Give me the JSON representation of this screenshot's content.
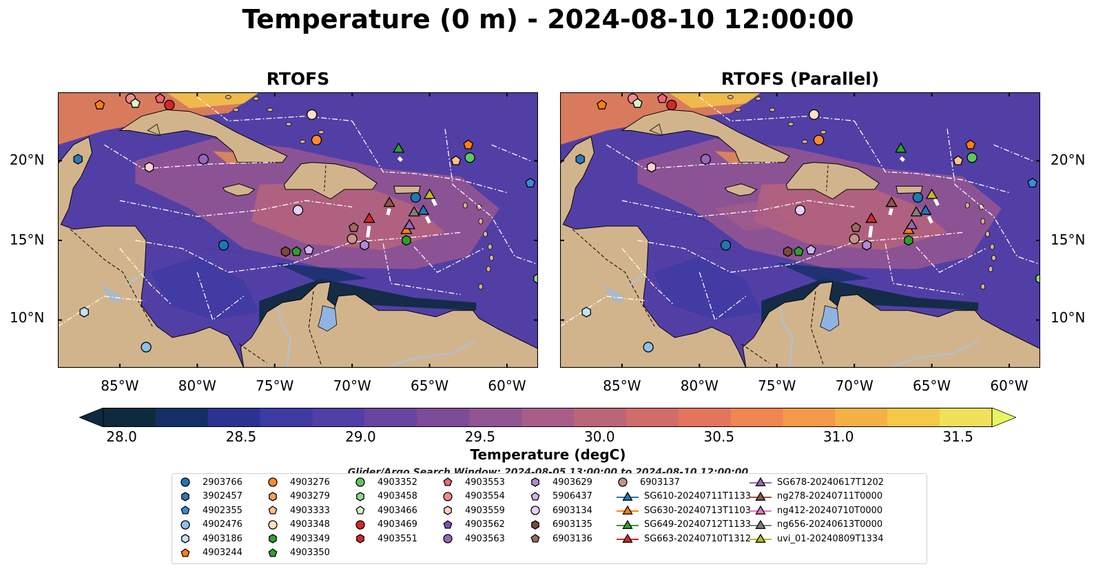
{
  "title": "Temperature (0 m) - 2024-08-10 12:00:00",
  "panels": [
    {
      "title": "RTOFS"
    },
    {
      "title": "RTOFS (Parallel)"
    }
  ],
  "map": {
    "lon_range": [
      -89,
      -58
    ],
    "lat_range": [
      7,
      24.3
    ],
    "lat_ticks": [
      {
        "value": 20,
        "label": "20°N"
      },
      {
        "value": 15,
        "label": "15°N"
      },
      {
        "value": 10,
        "label": "10°N"
      }
    ],
    "lon_ticks": [
      {
        "value": -85,
        "label": "85°W"
      },
      {
        "value": -80,
        "label": "80°W"
      },
      {
        "value": -75,
        "label": "75°W"
      },
      {
        "value": -70,
        "label": "70°W"
      },
      {
        "value": -65,
        "label": "65°W"
      },
      {
        "value": -60,
        "label": "60°W"
      }
    ],
    "land_color": "#d2b48c",
    "lake_color": "#8fb4e3"
  },
  "colorbar": {
    "label": "Temperature (degC)",
    "min": 28.0,
    "max": 31.5,
    "ticks": [
      "28.0",
      "28.5",
      "29.0",
      "29.5",
      "30.0",
      "30.5",
      "31.0",
      "31.5"
    ],
    "colors": [
      "#0d2a3e",
      "#142f66",
      "#2b3391",
      "#3d3ba2",
      "#523fa6",
      "#6845a0",
      "#7e4b98",
      "#925592",
      "#a85e88",
      "#bc6578",
      "#d06c6a",
      "#e3755c",
      "#f08650",
      "#f49a48",
      "#f6b145",
      "#f5c948",
      "#f1e05a"
    ],
    "under_color": "#0d2a3e",
    "over_color": "#e8f562"
  },
  "search_window": "Glider/Argo Search Window: 2024-08-05 13:00:00 to 2024-08-10 12:00:00",
  "legend": {
    "columns": [
      [
        {
          "label": "2903766",
          "marker": "circle",
          "color": "#1f77b4"
        },
        {
          "label": "3902457",
          "marker": "hexagon",
          "color": "#2f78b8"
        },
        {
          "label": "4902355",
          "marker": "pentagon",
          "color": "#3b8bd4"
        },
        {
          "label": "4902476",
          "marker": "circle",
          "color": "#8ec0e8"
        },
        {
          "label": "4903186",
          "marker": "hexagon",
          "color": "#c6e2f6"
        },
        {
          "label": "4903244",
          "marker": "pentagon",
          "color": "#ff7f0e"
        }
      ],
      [
        {
          "label": "4903276",
          "marker": "circle",
          "color": "#ff8c2a"
        },
        {
          "label": "4903279",
          "marker": "hexagon",
          "color": "#ffa04a"
        },
        {
          "label": "4903333",
          "marker": "pentagon",
          "color": "#ffc08a"
        },
        {
          "label": "4903348",
          "marker": "circle",
          "color": "#ffe0c2"
        },
        {
          "label": "4903349",
          "marker": "hexagon",
          "color": "#2ca02c"
        },
        {
          "label": "4903350",
          "marker": "pentagon",
          "color": "#2ca02c"
        }
      ],
      [
        {
          "label": "4903352",
          "marker": "circle",
          "color": "#5fc65f"
        },
        {
          "label": "4903458",
          "marker": "hexagon",
          "color": "#8ed88e"
        },
        {
          "label": "4903466",
          "marker": "pentagon",
          "color": "#d4f5c8"
        },
        {
          "label": "4903469",
          "marker": "circle",
          "color": "#d62728"
        },
        {
          "label": "4903551",
          "marker": "hexagon",
          "color": "#d62728"
        }
      ],
      [
        {
          "label": "4903553",
          "marker": "pentagon",
          "color": "#f06478"
        },
        {
          "label": "4903554",
          "marker": "circle",
          "color": "#f28a8a"
        },
        {
          "label": "4903559",
          "marker": "hexagon",
          "color": "#fbd0d0"
        },
        {
          "label": "4903562",
          "marker": "pentagon",
          "color": "#7b4fb8"
        },
        {
          "label": "4903563",
          "marker": "circle",
          "color": "#9467bd"
        }
      ],
      [
        {
          "label": "4903629",
          "marker": "hexagon",
          "color": "#b08ad6"
        },
        {
          "label": "5906437",
          "marker": "pentagon",
          "color": "#cdb4ec"
        },
        {
          "label": "6903134",
          "marker": "circle",
          "color": "#e6d2f8"
        },
        {
          "label": "6903135",
          "marker": "hexagon",
          "color": "#7a4a3a"
        },
        {
          "label": "6903136",
          "marker": "pentagon",
          "color": "#a0675a"
        }
      ],
      [
        {
          "label": "6903137",
          "marker": "circle",
          "color": "#c49484"
        },
        {
          "label": "SG610-20240711T1133",
          "marker": "triangle",
          "color": "#1f77b4"
        },
        {
          "label": "SG630-20240713T1103",
          "marker": "triangle",
          "color": "#ff7f0e"
        },
        {
          "label": "SG649-20240712T1133",
          "marker": "triangle",
          "color": "#2ca02c"
        },
        {
          "label": "SG663-20240710T1312",
          "marker": "triangle",
          "color": "#d62728"
        }
      ],
      [
        {
          "label": "SG678-20240617T1202",
          "marker": "triangle",
          "color": "#9467bd"
        },
        {
          "label": "ng278-20240711T0000",
          "marker": "triangle",
          "color": "#8c564b"
        },
        {
          "label": "ng412-20240710T0000",
          "marker": "triangle",
          "color": "#e377c2"
        },
        {
          "label": "ng656-20240613T0000",
          "marker": "triangle",
          "color": "#7f7f7f"
        },
        {
          "label": "uvi_01-20240809T1334",
          "marker": "triangle",
          "color": "#bcbd22"
        }
      ]
    ]
  },
  "markers": [
    {
      "lon": -86.3,
      "lat": 23.5,
      "marker": "pentagon",
      "color": "#ff7f0e"
    },
    {
      "lon": -84.3,
      "lat": 23.9,
      "marker": "circle",
      "color": "#f28a8a"
    },
    {
      "lon": -84.0,
      "lat": 23.6,
      "marker": "pentagon",
      "color": "#d4f5c8"
    },
    {
      "lon": -82.4,
      "lat": 23.9,
      "marker": "pentagon",
      "color": "#f06478"
    },
    {
      "lon": -81.8,
      "lat": 23.5,
      "marker": "circle",
      "color": "#d62728"
    },
    {
      "lon": -72.6,
      "lat": 22.9,
      "marker": "circle",
      "color": "#ffe0c2"
    },
    {
      "lon": -72.3,
      "lat": 21.3,
      "marker": "circle",
      "color": "#ff8c2a"
    },
    {
      "lon": -87.7,
      "lat": 20.1,
      "marker": "hexagon",
      "color": "#2f78b8"
    },
    {
      "lon": -83.1,
      "lat": 19.6,
      "marker": "hexagon",
      "color": "#fbd0d0"
    },
    {
      "lon": -79.6,
      "lat": 20.1,
      "marker": "circle",
      "color": "#9467bd"
    },
    {
      "lon": -62.5,
      "lat": 21.0,
      "marker": "pentagon",
      "color": "#ff7f0e"
    },
    {
      "lon": -63.3,
      "lat": 20.0,
      "marker": "pentagon",
      "color": "#ffc08a"
    },
    {
      "lon": -62.4,
      "lat": 20.2,
      "marker": "circle",
      "color": "#5fc65f"
    },
    {
      "lon": -58.5,
      "lat": 18.6,
      "marker": "pentagon",
      "color": "#3b8bd4"
    },
    {
      "lon": -73.5,
      "lat": 16.9,
      "marker": "circle",
      "color": "#e6d2f8"
    },
    {
      "lon": -65.9,
      "lat": 17.7,
      "marker": "circle",
      "color": "#1f77b4"
    },
    {
      "lon": -69.9,
      "lat": 15.8,
      "marker": "pentagon",
      "color": "#a0675a"
    },
    {
      "lon": -70.0,
      "lat": 15.1,
      "marker": "circle",
      "color": "#c49484"
    },
    {
      "lon": -69.2,
      "lat": 14.7,
      "marker": "hexagon",
      "color": "#b08ad6"
    },
    {
      "lon": -66.5,
      "lat": 15.0,
      "marker": "hexagon",
      "color": "#2ca02c"
    },
    {
      "lon": -78.3,
      "lat": 14.7,
      "marker": "circle",
      "color": "#1f77b4"
    },
    {
      "lon": -74.3,
      "lat": 14.3,
      "marker": "hexagon",
      "color": "#7a4a3a"
    },
    {
      "lon": -73.6,
      "lat": 14.3,
      "marker": "pentagon",
      "color": "#2ca02c"
    },
    {
      "lon": -72.8,
      "lat": 14.4,
      "marker": "pentagon",
      "color": "#cdb4ec"
    },
    {
      "lon": -58.0,
      "lat": 12.6,
      "marker": "hexagon",
      "color": "#8ed88e"
    },
    {
      "lon": -87.3,
      "lat": 10.5,
      "marker": "hexagon",
      "color": "#c6e2f6"
    },
    {
      "lon": -83.3,
      "lat": 8.3,
      "marker": "circle",
      "color": "#8ec0e8"
    },
    {
      "lon": -67.0,
      "lat": 20.8,
      "marker": "triangle",
      "color": "#2ca02c"
    },
    {
      "lon": -68.9,
      "lat": 16.4,
      "marker": "triangle",
      "color": "#d62728"
    },
    {
      "lon": -67.6,
      "lat": 17.4,
      "marker": "triangle",
      "color": "#8c564b"
    },
    {
      "lon": -65.0,
      "lat": 17.9,
      "marker": "triangle",
      "color": "#bcbd22"
    },
    {
      "lon": -65.4,
      "lat": 16.9,
      "marker": "triangle",
      "color": "#1f77b4"
    },
    {
      "lon": -66.0,
      "lat": 16.8,
      "marker": "triangle",
      "color": "#7f7f7f"
    },
    {
      "lon": -66.5,
      "lat": 15.7,
      "marker": "triangle",
      "color": "#ff7f0e"
    },
    {
      "lon": -66.3,
      "lat": 16.0,
      "marker": "triangle",
      "color": "#9467bd"
    }
  ]
}
